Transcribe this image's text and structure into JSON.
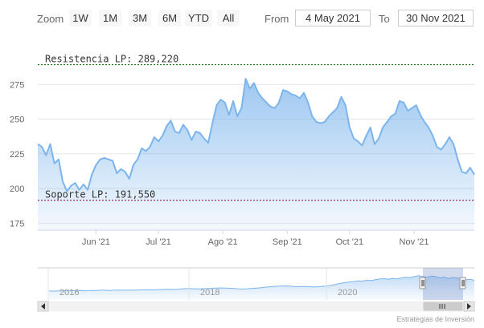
{
  "toolbar": {
    "zoom_label": "Zoom",
    "zoom_buttons": [
      "1W",
      "1M",
      "3M",
      "6M",
      "YTD",
      "All"
    ],
    "from_label": "From",
    "from_value": "4 May 2021",
    "to_label": "To",
    "to_value": "30 Nov 2021"
  },
  "credits": "Estrategias de Inversión",
  "chart_data": {
    "type": "area",
    "title": "",
    "xlabel": "",
    "ylabel": "",
    "ylim": [
      170,
      300
    ],
    "y_ticks": [
      175,
      200,
      225,
      250,
      275
    ],
    "x_range": [
      "2021-05-04",
      "2021-11-30"
    ],
    "x_ticks": [
      {
        "date": "2021-06-01",
        "label": "Jun '21"
      },
      {
        "date": "2021-07-01",
        "label": "Jul '21"
      },
      {
        "date": "2021-08-01",
        "label": "Ago '21"
      },
      {
        "date": "2021-09-01",
        "label": "Sep '21"
      },
      {
        "date": "2021-10-01",
        "label": "Oct '21"
      },
      {
        "date": "2021-11-01",
        "label": "Nov '21"
      }
    ],
    "grid": true,
    "series": [
      {
        "color": "#7cb5ec",
        "x": [
          "2021-05-04",
          "2021-05-06",
          "2021-05-08",
          "2021-05-10",
          "2021-05-12",
          "2021-05-14",
          "2021-05-16",
          "2021-05-18",
          "2021-05-20",
          "2021-05-22",
          "2021-05-24",
          "2021-05-26",
          "2021-05-28",
          "2021-05-30",
          "2021-06-01",
          "2021-06-03",
          "2021-06-05",
          "2021-06-07",
          "2021-06-09",
          "2021-06-11",
          "2021-06-13",
          "2021-06-15",
          "2021-06-17",
          "2021-06-19",
          "2021-06-21",
          "2021-06-23",
          "2021-06-25",
          "2021-06-27",
          "2021-06-29",
          "2021-07-01",
          "2021-07-03",
          "2021-07-05",
          "2021-07-07",
          "2021-07-09",
          "2021-07-11",
          "2021-07-13",
          "2021-07-15",
          "2021-07-17",
          "2021-07-19",
          "2021-07-21",
          "2021-07-23",
          "2021-07-25",
          "2021-07-27",
          "2021-07-29",
          "2021-07-31",
          "2021-08-02",
          "2021-08-04",
          "2021-08-06",
          "2021-08-08",
          "2021-08-10",
          "2021-08-12",
          "2021-08-14",
          "2021-08-16",
          "2021-08-18",
          "2021-08-20",
          "2021-08-22",
          "2021-08-24",
          "2021-08-26",
          "2021-08-28",
          "2021-08-30",
          "2021-09-01",
          "2021-09-03",
          "2021-09-05",
          "2021-09-07",
          "2021-09-09",
          "2021-09-11",
          "2021-09-13",
          "2021-09-15",
          "2021-09-17",
          "2021-09-19",
          "2021-09-21",
          "2021-09-23",
          "2021-09-25",
          "2021-09-27",
          "2021-09-29",
          "2021-10-01",
          "2021-10-03",
          "2021-10-05",
          "2021-10-07",
          "2021-10-09",
          "2021-10-11",
          "2021-10-13",
          "2021-10-15",
          "2021-10-17",
          "2021-10-19",
          "2021-10-21",
          "2021-10-23",
          "2021-10-25",
          "2021-10-27",
          "2021-10-29",
          "2021-10-31",
          "2021-11-02",
          "2021-11-04",
          "2021-11-06",
          "2021-11-08",
          "2021-11-10",
          "2021-11-12",
          "2021-11-14",
          "2021-11-16",
          "2021-11-18",
          "2021-11-20",
          "2021-11-22",
          "2021-11-24",
          "2021-11-26",
          "2021-11-28",
          "2021-11-30"
        ],
        "values": [
          232,
          230,
          224,
          232,
          218,
          221,
          205,
          198,
          202,
          204,
          199,
          203,
          199,
          210,
          217,
          221,
          222,
          221,
          220,
          211,
          214,
          212,
          207,
          217,
          221,
          229,
          227,
          230,
          237,
          234,
          238,
          245,
          249,
          241,
          240,
          246,
          242,
          235,
          241,
          240,
          236,
          233,
          247,
          260,
          264,
          262,
          253,
          263,
          252,
          258,
          279,
          272,
          276,
          269,
          265,
          262,
          259,
          258,
          262,
          271,
          270,
          268,
          267,
          265,
          269,
          262,
          252,
          248,
          247,
          248,
          252,
          255,
          258,
          266,
          260,
          244,
          236,
          234,
          231,
          238,
          244,
          232,
          236,
          244,
          248,
          252,
          254,
          263,
          262,
          256,
          258,
          260,
          253,
          248,
          244,
          238,
          230,
          228,
          232,
          237,
          232,
          221,
          212,
          211,
          215,
          210
        ]
      }
    ],
    "annotations": [
      {
        "label": "Resistencia LP: 289,220",
        "value": 289.22,
        "color": "#006400"
      },
      {
        "label": "Soporte LP: 191,550",
        "value": 191.55,
        "color": "#800040"
      }
    ]
  },
  "navigator": {
    "year_labels": [
      "2016",
      "2018",
      "2020"
    ],
    "scroll_left_icon": "arrow-left-icon",
    "scroll_right_icon": "arrow-right-icon",
    "values": [
      186,
      185,
      186,
      186,
      187,
      187,
      188,
      188,
      187,
      188,
      189,
      189,
      190,
      190,
      189,
      190,
      191,
      191,
      190,
      190,
      191,
      192,
      192,
      193,
      192,
      193,
      194,
      195,
      196,
      195,
      196,
      198,
      199,
      199,
      198,
      197,
      199,
      200,
      201,
      202,
      203,
      202,
      201,
      200,
      198,
      197,
      198,
      200,
      201,
      203,
      206,
      208,
      210,
      212,
      213,
      214,
      212,
      211,
      210,
      211,
      210,
      209,
      208,
      210,
      212,
      215,
      219,
      224,
      229,
      233,
      236,
      238,
      242,
      240,
      246,
      244,
      248,
      252,
      254,
      250,
      255,
      252,
      258,
      262,
      260,
      265,
      270,
      266,
      262,
      268,
      265,
      258,
      262,
      255,
      260,
      257,
      252,
      248,
      250,
      245
    ]
  }
}
